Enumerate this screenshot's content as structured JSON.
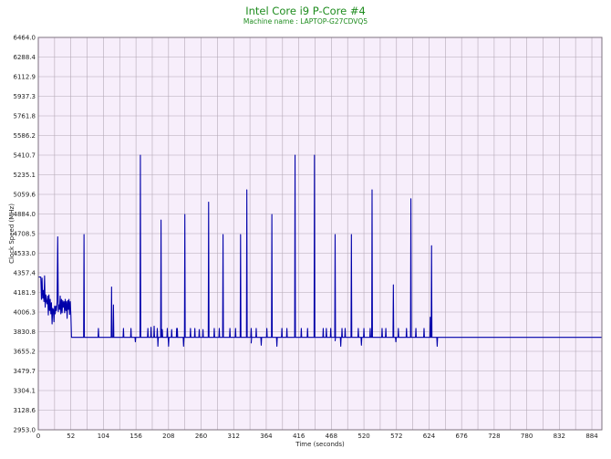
{
  "chart_data": {
    "type": "line",
    "title": "Intel Core i9 P-Core #4",
    "subtitle": "Machine name : LAPTOP-G27CDVQ5",
    "xlabel": "Time (seconds)",
    "ylabel": "Clock Speed (MHz)",
    "xlim": [
      0,
      900
    ],
    "ylim": [
      2953.0,
      6464.0
    ],
    "x_ticks": [
      "0",
      "52",
      "104",
      "156",
      "208",
      "260",
      "312",
      "364",
      "416",
      "468",
      "520",
      "572",
      "624",
      "676",
      "728",
      "780",
      "832",
      "884"
    ],
    "y_ticks": [
      "2953.0",
      "3128.6",
      "3304.1",
      "3479.7",
      "3655.2",
      "3830.8",
      "4006.3",
      "4181.9",
      "4357.4",
      "4533.0",
      "4708.5",
      "4884.0",
      "5059.6",
      "5235.1",
      "5410.7",
      "5586.2",
      "5761.8",
      "5937.3",
      "6112.9",
      "6288.4",
      "6464.0"
    ],
    "grid": true,
    "legend": "none",
    "colors": {
      "line": "#0000aa",
      "plot_bg": "#f7eefb",
      "grid": "#b4a8b6",
      "title": "#1e8c1e"
    },
    "series": [
      {
        "baseline": 3780,
        "early": [
          [
            0,
            4320
          ],
          [
            4,
            4320
          ],
          [
            5,
            4120
          ],
          [
            6,
            4310
          ],
          [
            7,
            4130
          ],
          [
            8,
            4200
          ],
          [
            9,
            4100
          ],
          [
            10,
            4330
          ],
          [
            11,
            4050
          ],
          [
            12,
            4160
          ],
          [
            13,
            4100
          ],
          [
            14,
            4080
          ],
          [
            15,
            4150
          ],
          [
            16,
            3980
          ],
          [
            17,
            4160
          ],
          [
            18,
            4020
          ],
          [
            19,
            4120
          ],
          [
            20,
            3990
          ],
          [
            21,
            4090
          ],
          [
            22,
            3900
          ],
          [
            23,
            4040
          ],
          [
            24,
            4030
          ],
          [
            25,
            3920
          ],
          [
            26,
            4060
          ],
          [
            27,
            3990
          ],
          [
            28,
            4060
          ],
          [
            29,
            4020
          ],
          [
            30,
            4100
          ],
          [
            31,
            4680
          ],
          [
            32,
            4010
          ],
          [
            33,
            4070
          ],
          [
            34,
            4030
          ],
          [
            35,
            4150
          ],
          [
            36,
            3990
          ],
          [
            37,
            4120
          ],
          [
            38,
            4000
          ],
          [
            39,
            4110
          ],
          [
            40,
            4050
          ],
          [
            41,
            4100
          ],
          [
            42,
            4000
          ],
          [
            43,
            4120
          ],
          [
            44,
            4020
          ],
          [
            45,
            4100
          ],
          [
            46,
            3950
          ],
          [
            47,
            4110
          ],
          [
            48,
            4030
          ],
          [
            49,
            4120
          ],
          [
            50,
            3985
          ],
          [
            51,
            4100
          ],
          [
            52,
            3985
          ],
          [
            53,
            3780
          ]
        ],
        "spikes": [
          [
            73,
            4700
          ],
          [
            96,
            3860
          ],
          [
            117,
            4230
          ],
          [
            120,
            4070
          ],
          [
            136,
            3860
          ],
          [
            148,
            3860
          ],
          [
            163,
            5410
          ],
          [
            175,
            3860
          ],
          [
            180,
            3870
          ],
          [
            185,
            3880
          ],
          [
            190,
            3860
          ],
          [
            196,
            4830
          ],
          [
            198,
            3850
          ],
          [
            206,
            3860
          ],
          [
            213,
            3850
          ],
          [
            221,
            3860
          ],
          [
            222,
            3860
          ],
          [
            234,
            4880
          ],
          [
            243,
            3860
          ],
          [
            250,
            3860
          ],
          [
            257,
            3850
          ],
          [
            263,
            3850
          ],
          [
            272,
            4990
          ],
          [
            281,
            3860
          ],
          [
            289,
            3860
          ],
          [
            295,
            4700
          ],
          [
            306,
            3860
          ],
          [
            315,
            3860
          ],
          [
            323,
            4700
          ],
          [
            333,
            5100
          ],
          [
            340,
            3860
          ],
          [
            348,
            3860
          ],
          [
            365,
            3860
          ],
          [
            373,
            4880
          ],
          [
            389,
            3860
          ],
          [
            397,
            3860
          ],
          [
            410,
            5410
          ],
          [
            420,
            3860
          ],
          [
            430,
            3860
          ],
          [
            441,
            5410
          ],
          [
            455,
            3860
          ],
          [
            460,
            3860
          ],
          [
            467,
            3860
          ],
          [
            474,
            4700
          ],
          [
            485,
            3860
          ],
          [
            490,
            3860
          ],
          [
            500,
            4700
          ],
          [
            511,
            3860
          ],
          [
            520,
            3860
          ],
          [
            530,
            3860
          ],
          [
            533,
            5100
          ],
          [
            549,
            3860
          ],
          [
            555,
            3860
          ],
          [
            567,
            4250
          ],
          [
            575,
            3860
          ],
          [
            588,
            3860
          ],
          [
            595,
            5020
          ],
          [
            603,
            3860
          ],
          [
            616,
            3860
          ],
          [
            626,
            3960
          ],
          [
            628,
            4600
          ]
        ],
        "dips": [
          [
            155,
            3740
          ],
          [
            191,
            3700
          ],
          [
            208,
            3700
          ],
          [
            232,
            3700
          ],
          [
            340,
            3730
          ],
          [
            356,
            3710
          ],
          [
            381,
            3700
          ],
          [
            474,
            3750
          ],
          [
            483,
            3700
          ],
          [
            516,
            3710
          ],
          [
            571,
            3740
          ],
          [
            637,
            3700
          ]
        ]
      }
    ]
  }
}
